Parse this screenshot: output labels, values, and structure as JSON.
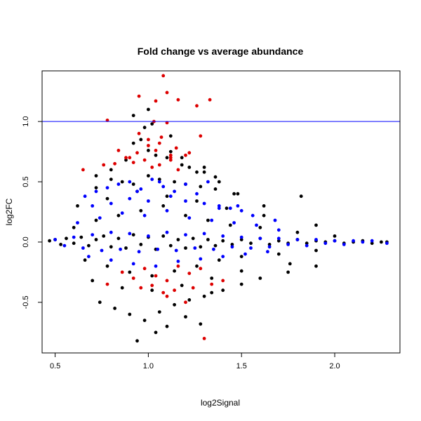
{
  "chart_data": {
    "type": "scatter",
    "title": "Fold change vs average abundance",
    "xlabel": "log2Signal",
    "ylabel": "log2FC",
    "xlim": [
      0.43,
      2.35
    ],
    "ylim": [
      -0.92,
      1.42
    ],
    "x_ticks": [
      0.5,
      1.0,
      1.5,
      2.0
    ],
    "x_tick_labels": [
      "0.5",
      "1.0",
      "1.5",
      "2.0"
    ],
    "y_ticks": [
      -0.5,
      0.0,
      0.5,
      1.0
    ],
    "y_tick_labels": [
      "-0.5",
      "0.0",
      "0.5",
      "1.0"
    ],
    "grid": false,
    "reference_lines": [
      {
        "axis": "y",
        "value": 1.0,
        "color": "#0000ff"
      }
    ],
    "colors": {
      "all": "#000000",
      "highlight_blue": "#0000ff",
      "highlight_red": "#dd0000"
    },
    "series": [
      {
        "color": "#000000",
        "x": [
          0.47,
          0.5,
          0.53,
          0.56,
          0.6,
          0.64,
          0.68,
          0.72,
          0.76,
          0.8,
          0.84,
          0.88,
          0.92,
          0.96,
          1.0,
          1.04,
          1.08,
          1.12,
          1.16,
          1.2,
          1.24,
          1.28,
          1.32,
          1.36,
          1.4,
          1.45,
          1.5,
          1.55,
          1.6,
          1.65,
          1.7,
          1.75,
          1.8,
          1.85,
          1.9,
          1.95,
          2.0,
          2.05,
          2.1,
          2.15,
          2.2,
          2.25,
          2.28,
          0.6,
          0.66,
          0.72,
          0.78,
          0.84,
          0.9,
          0.96,
          1.02,
          1.08,
          1.14,
          1.2,
          1.26,
          1.32,
          1.38,
          1.44,
          1.5,
          1.6,
          1.7,
          1.8,
          1.9,
          2.0,
          0.62,
          0.7,
          0.78,
          0.86,
          0.94,
          1.02,
          1.1,
          1.18,
          1.26,
          1.34,
          1.42,
          1.5,
          1.62,
          1.76,
          1.9,
          0.72,
          0.8,
          0.88,
          0.92,
          0.96,
          1.0,
          1.04,
          1.12,
          1.18,
          1.22,
          1.3,
          1.38,
          1.46,
          0.74,
          0.82,
          0.9,
          0.98,
          1.06,
          1.14,
          1.22,
          1.3,
          1.4,
          1.5,
          1.6,
          1.75,
          1.9,
          0.72,
          0.8,
          0.86,
          0.92,
          1.0,
          1.06,
          1.14,
          1.2,
          1.28,
          1.36,
          1.48,
          0.94,
          1.1,
          0.98,
          1.02,
          1.12,
          1.3,
          1.04,
          1.2,
          1.28,
          1.34,
          0.92,
          1.0,
          1.1,
          1.18,
          1.26,
          1.36,
          1.82,
          1.62
        ],
        "y": [
          0.01,
          0.02,
          -0.02,
          0.03,
          -0.01,
          0.04,
          -0.03,
          0.02,
          0.05,
          -0.04,
          0.03,
          -0.05,
          0.06,
          -0.02,
          0.04,
          -0.06,
          0.05,
          -0.03,
          0.02,
          -0.05,
          0.03,
          -0.04,
          0.02,
          -0.03,
          0.01,
          -0.02,
          0.02,
          -0.01,
          0.03,
          -0.02,
          0.01,
          -0.01,
          0.02,
          -0.01,
          0.01,
          0.0,
          0.01,
          -0.01,
          0.0,
          0.01,
          -0.01,
          0.0,
          0.0,
          0.12,
          -0.15,
          0.18,
          -0.2,
          0.22,
          -0.25,
          0.26,
          -0.28,
          0.3,
          -0.24,
          0.22,
          -0.2,
          0.18,
          -0.15,
          0.14,
          -0.12,
          0.12,
          -0.1,
          0.08,
          -0.07,
          0.05,
          0.3,
          -0.32,
          0.36,
          -0.38,
          0.42,
          -0.4,
          0.38,
          -0.36,
          0.34,
          -0.3,
          0.28,
          -0.24,
          0.22,
          -0.18,
          0.14,
          0.55,
          0.6,
          0.68,
          1.05,
          0.85,
          1.1,
          0.72,
          0.75,
          0.7,
          0.62,
          0.58,
          0.5,
          0.4,
          -0.5,
          -0.55,
          -0.6,
          -0.65,
          -0.58,
          -0.52,
          -0.48,
          -0.45,
          -0.4,
          -0.35,
          -0.3,
          -0.25,
          -0.2,
          0.45,
          0.52,
          0.5,
          0.48,
          0.55,
          0.52,
          0.5,
          0.48,
          0.46,
          0.44,
          0.4,
          -0.82,
          -0.7,
          0.95,
          0.98,
          0.88,
          0.62,
          -0.75,
          -0.62,
          -0.68,
          -0.42,
          0.82,
          0.76,
          0.7,
          0.64,
          0.58,
          0.54,
          0.38,
          0.3
        ]
      },
      {
        "color": "#0000ff",
        "x": [
          0.5,
          0.55,
          0.6,
          0.65,
          0.7,
          0.75,
          0.8,
          0.85,
          0.9,
          0.95,
          1.0,
          1.05,
          1.1,
          1.15,
          1.2,
          1.25,
          1.3,
          1.35,
          1.4,
          1.45,
          1.5,
          1.55,
          1.6,
          1.65,
          1.7,
          1.75,
          1.8,
          1.85,
          1.9,
          1.95,
          2.0,
          2.05,
          2.1,
          2.15,
          2.2,
          2.28,
          0.62,
          0.68,
          0.74,
          0.8,
          0.86,
          0.92,
          0.98,
          1.04,
          1.1,
          1.16,
          1.22,
          1.28,
          1.34,
          1.4,
          1.46,
          1.52,
          1.58,
          1.64,
          1.7,
          0.66,
          0.72,
          0.78,
          0.84,
          0.9,
          0.96,
          1.02,
          1.08,
          1.14,
          1.2,
          1.26,
          1.32,
          1.38,
          1.44,
          1.5,
          0.7,
          0.8,
          0.9,
          0.94,
          1.0,
          1.06,
          1.12,
          1.2,
          1.3,
          1.38,
          1.48,
          1.56,
          1.68
        ],
        "y": [
          0.02,
          -0.03,
          0.04,
          -0.05,
          0.06,
          -0.07,
          0.08,
          -0.06,
          0.07,
          -0.08,
          0.05,
          -0.06,
          0.08,
          -0.07,
          0.06,
          -0.05,
          0.07,
          -0.06,
          0.05,
          -0.04,
          0.04,
          -0.05,
          0.03,
          -0.04,
          0.03,
          -0.02,
          0.02,
          -0.03,
          0.02,
          -0.01,
          0.01,
          -0.02,
          0.01,
          0.0,
          0.01,
          -0.01,
          0.16,
          -0.12,
          0.2,
          -0.15,
          0.24,
          -0.18,
          0.22,
          -0.2,
          0.26,
          -0.16,
          0.2,
          -0.14,
          0.18,
          -0.12,
          0.16,
          -0.1,
          0.14,
          -0.08,
          0.1,
          0.38,
          0.42,
          0.45,
          0.48,
          0.5,
          0.44,
          0.52,
          0.46,
          0.42,
          0.48,
          0.4,
          0.5,
          0.3,
          0.28,
          0.26,
          0.3,
          0.32,
          0.36,
          0.42,
          0.34,
          0.5,
          0.38,
          0.34,
          0.32,
          0.28,
          0.3,
          0.22,
          0.18
        ]
      },
      {
        "color": "#dd0000",
        "x": [
          1.08,
          0.95,
          1.1,
          1.04,
          1.16,
          1.26,
          1.33,
          0.78,
          1.03,
          1.1,
          0.95,
          1.0,
          1.07,
          1.15,
          1.28,
          1.12,
          0.84,
          1.2,
          1.04,
          0.9,
          0.92,
          0.98,
          1.02,
          1.06,
          1.12,
          1.16,
          1.22,
          0.65,
          0.76,
          0.82,
          0.88,
          0.94,
          1.0,
          1.06,
          1.12,
          0.78,
          0.86,
          0.92,
          0.98,
          1.04,
          1.1,
          1.16,
          1.22,
          1.28,
          1.34,
          1.4,
          1.1,
          1.2,
          0.96,
          1.02,
          1.08,
          1.14,
          1.3,
          1.24
        ],
        "y": [
          1.38,
          1.21,
          1.24,
          1.17,
          1.18,
          1.13,
          1.18,
          1.01,
          1.0,
          0.99,
          0.9,
          0.85,
          0.87,
          0.78,
          0.88,
          0.72,
          0.76,
          0.72,
          0.76,
          0.7,
          0.66,
          0.68,
          0.62,
          0.64,
          0.7,
          0.6,
          0.74,
          0.6,
          0.64,
          0.65,
          0.7,
          0.74,
          0.8,
          0.82,
          0.68,
          -0.35,
          -0.25,
          -0.3,
          -0.22,
          -0.28,
          -0.32,
          -0.2,
          -0.26,
          -0.22,
          -0.35,
          -0.32,
          -0.45,
          -0.5,
          -0.38,
          -0.36,
          -0.42,
          -0.4,
          -0.8,
          -0.38
        ]
      }
    ]
  }
}
